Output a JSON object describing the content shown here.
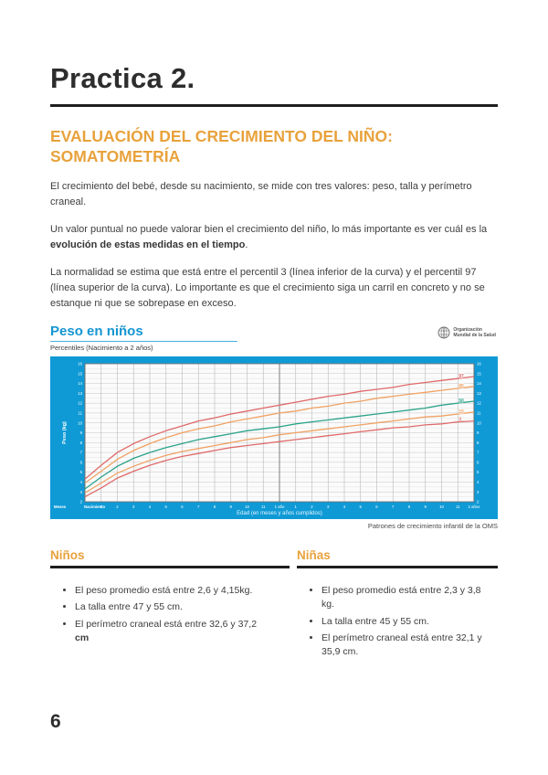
{
  "page": {
    "number": "6"
  },
  "doc": {
    "title": "Practica 2.",
    "heading": "EVALUACIÓN DEL CRECIMIENTO DEL NIÑO: SOMATOMETRÍA",
    "para1": "El crecimiento del bebé, desde su nacimiento, se mide con tres valores: peso, talla y perímetro craneal.",
    "para2_pre": "Un valor puntual no puede valorar bien el crecimiento del niño, lo más importante es ver cuál es la ",
    "para2_bold": "evolución de estas medidas en el tiempo",
    "para2_post": ".",
    "para3": "La normalidad se estima que está entre el percentil 3 (línea inferior de la curva) y el percentil 97 (línea superior de la curva). Lo importante es que el crecimiento siga un carril en concreto y no se estanque ni que se sobrepase en exceso."
  },
  "chart": {
    "title": "Peso en niños",
    "subtitle": "Percentiles (Nacimiento a 2 años)",
    "logo_line1": "Organización",
    "logo_line2": "Mundial de la Salud",
    "footer": "Patrones de crecimiento infantil de la OMS",
    "frame_color": "#0f9ad6"
  },
  "chart_data": {
    "type": "line",
    "title": "Peso en niños",
    "subtitle": "Percentiles (Nacimiento a 2 años)",
    "xlabel": "Edad (en meses y años cumplidos)",
    "ylabel": "Peso (kg)",
    "x_unit_label": "Meses",
    "ylim": [
      2,
      16
    ],
    "x_months": [
      0,
      1,
      2,
      3,
      4,
      5,
      6,
      7,
      8,
      9,
      10,
      11,
      12,
      13,
      14,
      15,
      16,
      17,
      18,
      19,
      20,
      21,
      22,
      23,
      24
    ],
    "x_ticks": [
      "Nacimiento",
      "1",
      "2",
      "3",
      "4",
      "5",
      "6",
      "7",
      "8",
      "9",
      "10",
      "11",
      "1 año",
      "1",
      "2",
      "3",
      "4",
      "5",
      "6",
      "7",
      "8",
      "9",
      "10",
      "11",
      "2 años"
    ],
    "grid": true,
    "legend_position": "right-end-labels",
    "series": [
      {
        "name": "97",
        "percentile": 97,
        "color": "#e06a6a",
        "values": [
          4.3,
          5.7,
          7.0,
          7.9,
          8.6,
          9.2,
          9.7,
          10.2,
          10.5,
          10.9,
          11.2,
          11.5,
          11.8,
          12.1,
          12.4,
          12.7,
          12.9,
          13.2,
          13.4,
          13.6,
          13.9,
          14.1,
          14.3,
          14.5,
          14.7
        ]
      },
      {
        "name": "85",
        "percentile": 85,
        "color": "#f0a264",
        "values": [
          3.9,
          5.1,
          6.3,
          7.2,
          7.9,
          8.5,
          9.0,
          9.4,
          9.7,
          10.1,
          10.4,
          10.7,
          11.0,
          11.2,
          11.5,
          11.7,
          12.0,
          12.2,
          12.5,
          12.7,
          12.9,
          13.1,
          13.3,
          13.5,
          13.7
        ]
      },
      {
        "name": "50",
        "percentile": 50,
        "color": "#2aa38a",
        "values": [
          3.3,
          4.5,
          5.6,
          6.4,
          7.0,
          7.5,
          7.9,
          8.3,
          8.6,
          8.9,
          9.2,
          9.4,
          9.6,
          9.9,
          10.1,
          10.3,
          10.5,
          10.7,
          10.9,
          11.1,
          11.3,
          11.5,
          11.8,
          12.0,
          12.2
        ]
      },
      {
        "name": "15",
        "percentile": 15,
        "color": "#f0a264",
        "values": [
          2.9,
          3.9,
          4.9,
          5.6,
          6.2,
          6.7,
          7.1,
          7.4,
          7.7,
          8.0,
          8.3,
          8.5,
          8.8,
          9.0,
          9.2,
          9.4,
          9.6,
          9.8,
          10.0,
          10.2,
          10.4,
          10.6,
          10.7,
          10.9,
          11.1
        ]
      },
      {
        "name": "3",
        "percentile": 3,
        "color": "#e06a6a",
        "values": [
          2.5,
          3.4,
          4.4,
          5.1,
          5.7,
          6.2,
          6.6,
          6.9,
          7.2,
          7.5,
          7.7,
          7.9,
          8.1,
          8.3,
          8.5,
          8.7,
          8.9,
          9.1,
          9.3,
          9.5,
          9.6,
          9.8,
          9.9,
          10.1,
          10.2
        ]
      }
    ]
  },
  "sections": {
    "boys": {
      "header": "Niños",
      "bullets": [
        {
          "text": "El peso promedio está entre 2,6 y 4,15kg.",
          "bold": ""
        },
        {
          "text": "La talla entre 47 y 55 cm.",
          "bold": ""
        },
        {
          "text": "El perímetro craneal está entre 32,6 y 37,2 ",
          "bold": "cm"
        }
      ]
    },
    "girls": {
      "header": "Niñas",
      "bullets": [
        {
          "text": "El peso promedio está entre 2,3 y 3,8 kg.",
          "bold": ""
        },
        {
          "text": "La talla entre 45 y 55 cm.",
          "bold": ""
        },
        {
          "text": "El perímetro craneal está entre 32,1 y 35,9 cm.",
          "bold": ""
        }
      ]
    }
  }
}
